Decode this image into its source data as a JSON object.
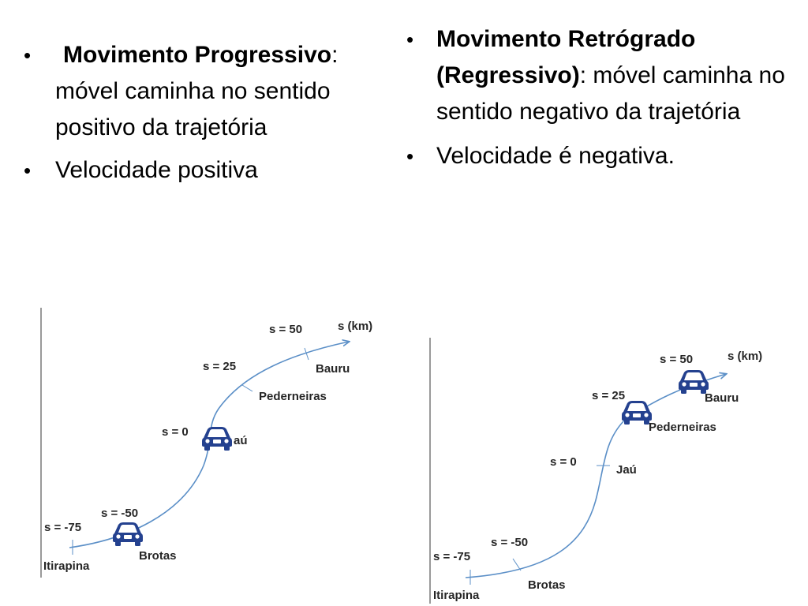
{
  "left_column": {
    "items": [
      {
        "term": "Movimento Progressivo",
        "separator": ":",
        "text": "móvel caminha no sentido positivo da trajetória"
      },
      {
        "text": "Velocidade positiva"
      }
    ]
  },
  "right_column": {
    "items": [
      {
        "term": "Movimento Retrógrado (Regressivo)",
        "separator": ":",
        "text": "móvel caminha no sentido negativo da trajetória"
      },
      {
        "text": "Velocidade é negativa."
      }
    ]
  },
  "diagram_left": {
    "axis_label": "s (km)",
    "positions": [
      "s = -75",
      "s = -50",
      "s = 0",
      "s = 25",
      "s = 50"
    ],
    "cities": [
      "Itirapina",
      "Brotas",
      "aú",
      "Pederneiras",
      "Bauru"
    ]
  },
  "diagram_right": {
    "axis_label": "s (km)",
    "positions": [
      "s = -75",
      "s = -50",
      "s = 0",
      "s = 25",
      "s = 50"
    ],
    "cities": [
      "Itirapina",
      "Brotas",
      "Jaú",
      "Pederneiras",
      "Bauru"
    ]
  },
  "colors": {
    "curve": "#5b8fc7",
    "car": "#24418f",
    "axis": "#333333"
  },
  "icons": [
    "car-icon"
  ]
}
